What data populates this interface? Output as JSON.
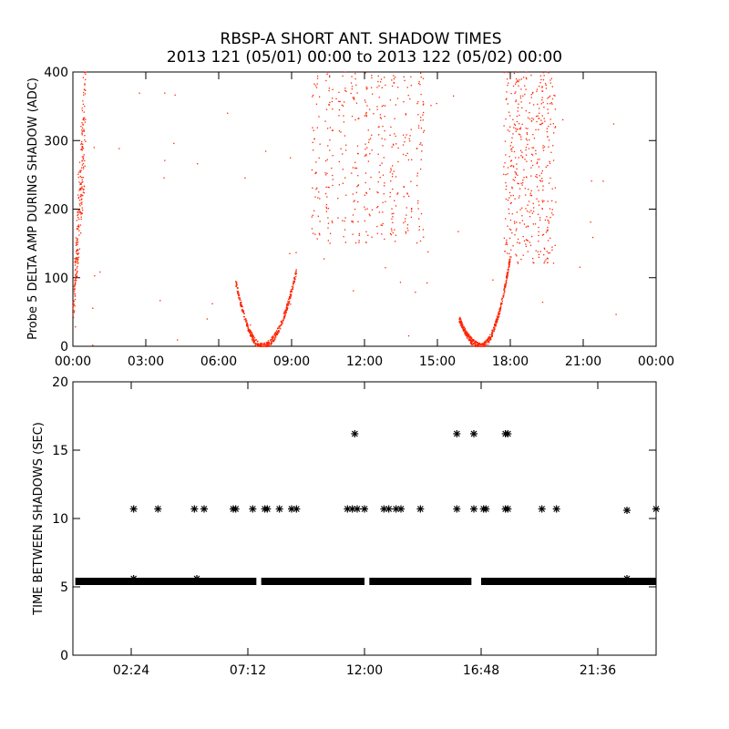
{
  "title": {
    "line1": "RBSP-A SHORT ANT. SHADOW TIMES",
    "line2": "2013 121 (05/01) 00:00 to 2013 122 (05/02) 00:00"
  },
  "colors": {
    "top_points": "#ff2200",
    "bottom_points": "#000000",
    "axes": "#000000"
  },
  "chart_data": [
    {
      "type": "scatter",
      "ylabel": "Probe 5 DELTA AMP DURING SHADOW (ADC)",
      "xlabel": "",
      "x_unit": "hours",
      "xlim": [
        0,
        24
      ],
      "ylim": [
        0,
        400
      ],
      "x_ticks": [
        0,
        3,
        6,
        9,
        12,
        15,
        18,
        21,
        24
      ],
      "x_tick_labels": [
        "00:00",
        "03:00",
        "06:00",
        "09:00",
        "12:00",
        "15:00",
        "18:00",
        "21:00",
        "00:00"
      ],
      "y_ticks": [
        0,
        100,
        200,
        300,
        400
      ],
      "y_tick_labels": [
        "0",
        "100",
        "200",
        "300",
        "400"
      ],
      "marker": "dot",
      "clusters": [
        {
          "x": [
            0.0,
            0.5
          ],
          "y": [
            0,
            400
          ],
          "shape": "rising"
        },
        {
          "x": [
            6.7,
            7.8
          ],
          "y": [
            0,
            95
          ],
          "shape": "u-left"
        },
        {
          "x": [
            7.8,
            9.2
          ],
          "y": [
            0,
            110
          ],
          "shape": "u-right"
        },
        {
          "x": [
            15.9,
            16.8
          ],
          "y": [
            0,
            40
          ],
          "shape": "u-left"
        },
        {
          "x": [
            16.8,
            18.0
          ],
          "y": [
            0,
            130
          ],
          "shape": "u-right"
        },
        {
          "x": [
            10.0,
            14.3
          ],
          "y": [
            150,
            400
          ],
          "shape": "scatter"
        },
        {
          "x": [
            17.9,
            19.7
          ],
          "y": [
            120,
            400
          ],
          "shape": "scatter"
        },
        {
          "x": [
            0.0,
            22.7
          ],
          "y": [
            0,
            400
          ],
          "shape": "sparse"
        }
      ]
    },
    {
      "type": "scatter",
      "ylabel": "TIME BETWEEN SHADOWS (SEC)",
      "xlabel": "",
      "x_unit": "hours",
      "xlim": [
        0,
        24
      ],
      "ylim": [
        0,
        20
      ],
      "x_ticks": [
        2.4,
        7.2,
        12.0,
        16.8,
        21.6
      ],
      "x_tick_labels": [
        "02:24",
        "07:12",
        "12:00",
        "16:48",
        "21:36"
      ],
      "y_ticks": [
        0,
        5,
        10,
        15,
        20
      ],
      "y_tick_labels": [
        "0",
        "5",
        "10",
        "15",
        "20"
      ],
      "marker": "asterisk",
      "baseline": {
        "y": 5.4,
        "segments": [
          [
            0.1,
            7.55
          ],
          [
            7.75,
            12.0
          ],
          [
            12.2,
            16.4
          ],
          [
            16.8,
            24.0
          ]
        ]
      },
      "points": [
        [
          2.5,
          10.7
        ],
        [
          3.5,
          10.7
        ],
        [
          5.0,
          10.7
        ],
        [
          5.4,
          10.7
        ],
        [
          6.6,
          10.7
        ],
        [
          6.7,
          10.7
        ],
        [
          7.4,
          10.7
        ],
        [
          7.9,
          10.7
        ],
        [
          8.0,
          10.7
        ],
        [
          8.5,
          10.7
        ],
        [
          9.0,
          10.7
        ],
        [
          9.2,
          10.7
        ],
        [
          11.3,
          10.7
        ],
        [
          11.5,
          10.7
        ],
        [
          11.7,
          10.7
        ],
        [
          12.0,
          10.7
        ],
        [
          12.8,
          10.7
        ],
        [
          13.0,
          10.7
        ],
        [
          13.3,
          10.7
        ],
        [
          13.5,
          10.7
        ],
        [
          14.3,
          10.7
        ],
        [
          15.8,
          10.7
        ],
        [
          16.5,
          10.7
        ],
        [
          16.9,
          10.7
        ],
        [
          17.0,
          10.7
        ],
        [
          17.8,
          10.7
        ],
        [
          17.9,
          10.7
        ],
        [
          19.3,
          10.7
        ],
        [
          19.9,
          10.7
        ],
        [
          22.8,
          10.6
        ],
        [
          24.0,
          10.7
        ],
        [
          11.6,
          16.2
        ],
        [
          15.8,
          16.2
        ],
        [
          16.5,
          16.2
        ],
        [
          17.8,
          16.2
        ],
        [
          17.9,
          16.2
        ],
        [
          2.5,
          5.6
        ],
        [
          5.1,
          5.6
        ],
        [
          22.8,
          5.6
        ]
      ]
    }
  ]
}
